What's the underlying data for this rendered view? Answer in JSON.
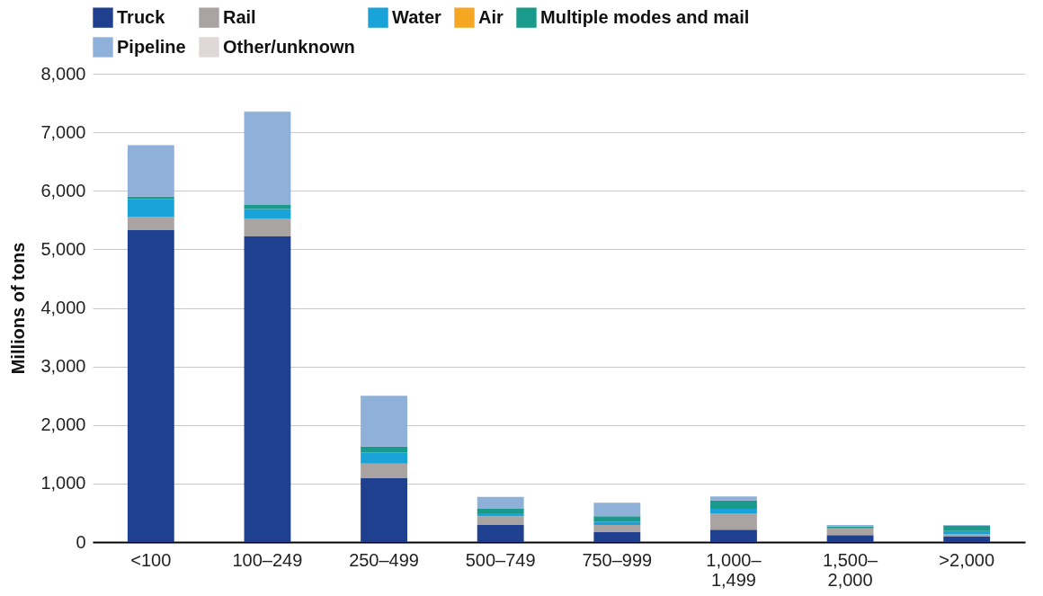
{
  "chart_data": {
    "type": "bar",
    "stacked": true,
    "ylabel": "Millions of tons",
    "categories": [
      "<100",
      "100–249",
      "250–499",
      "500–749",
      "750–999",
      "1,000–1,499",
      "1,500–2,000",
      ">2,000"
    ],
    "series": [
      {
        "name": "Truck",
        "color": "#1f3f8f",
        "values": [
          5330,
          5220,
          1090,
          290,
          170,
          210,
          120,
          100
        ]
      },
      {
        "name": "Rail",
        "color": "#a9a3a1",
        "values": [
          220,
          300,
          250,
          150,
          120,
          280,
          110,
          30
        ]
      },
      {
        "name": "Water",
        "color": "#1aa3d9",
        "values": [
          310,
          170,
          190,
          50,
          60,
          80,
          10,
          60
        ]
      },
      {
        "name": "Air",
        "color": "#f5a623",
        "values": [
          0,
          0,
          0,
          0,
          0,
          0,
          0,
          0
        ]
      },
      {
        "name": "Multiple modes and mail",
        "color": "#1a9a8a",
        "values": [
          40,
          70,
          100,
          80,
          90,
          140,
          30,
          90
        ]
      },
      {
        "name": "Pipeline",
        "color": "#8fb0d8",
        "values": [
          880,
          1590,
          870,
          200,
          230,
          70,
          20,
          10
        ]
      },
      {
        "name": "Other/unknown",
        "color": "#e0d8d6",
        "values": [
          0,
          0,
          0,
          0,
          0,
          0,
          0,
          0
        ]
      }
    ],
    "ylim": [
      0,
      8000
    ],
    "yticks": [
      0,
      {
        "value": 1000,
        "label": "1,000"
      },
      {
        "value": 2000,
        "label": "2,000"
      },
      {
        "value": 3000,
        "label": "3,000"
      },
      {
        "value": 4000,
        "label": "4,000"
      },
      {
        "value": 5000,
        "label": "5,000"
      },
      {
        "value": 6000,
        "label": "6,000"
      },
      {
        "value": 7000,
        "label": "7,000"
      },
      {
        "value": 8000,
        "label": "8,000"
      }
    ],
    "grid": "y",
    "legend": "top"
  }
}
